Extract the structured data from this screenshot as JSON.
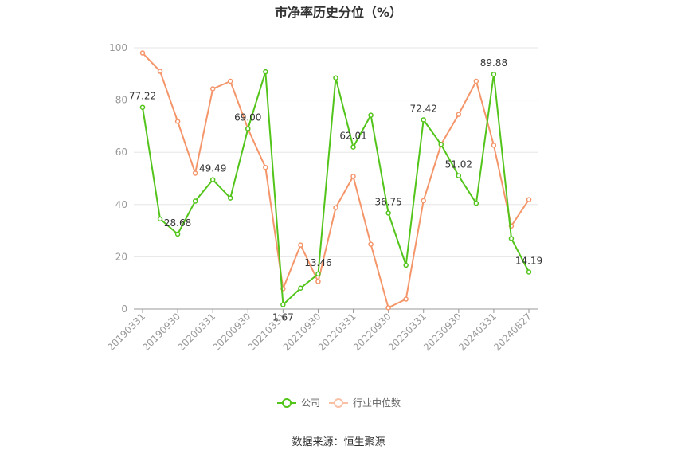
{
  "chart_data": {
    "type": "line",
    "title": "市净率历史分位（%）",
    "source": "数据来源：恒生聚源",
    "ylim": [
      0,
      100
    ],
    "yticks": [
      0,
      20,
      40,
      60,
      80,
      100
    ],
    "grid": true,
    "legend_position": "bottom",
    "x": [
      "20190331",
      "20190630",
      "20190930",
      "20191231",
      "20200331",
      "20200630",
      "20200930",
      "20201231",
      "20210331",
      "20210630",
      "20210930",
      "20211231",
      "20220331",
      "20220630",
      "20220930",
      "20221231",
      "20230331",
      "20230630",
      "20230930",
      "20231231",
      "20240331",
      "20240630",
      "20240827"
    ],
    "xtick_labels": [
      "20190331",
      "20190930",
      "20200331",
      "20200930",
      "20210331",
      "20210930",
      "20220331",
      "20220930",
      "20230331",
      "20230930",
      "20240331",
      "20240827"
    ],
    "xtick_indices": [
      0,
      2,
      4,
      6,
      8,
      10,
      12,
      14,
      16,
      18,
      20,
      22
    ],
    "series": [
      {
        "name": "公司",
        "color": "#52c41a",
        "values": [
          77.22,
          34.5,
          28.68,
          41.3,
          49.49,
          42.5,
          69.0,
          90.8,
          1.67,
          8.0,
          13.46,
          88.5,
          62.01,
          74.2,
          36.75,
          16.8,
          72.42,
          63.0,
          51.02,
          40.5,
          89.88,
          27.0,
          14.19
        ],
        "labels": {
          "0": "77.22",
          "2": "28.68",
          "4": "49.49",
          "6": "69.00",
          "8": "1.67",
          "10": "13.46",
          "12": "62.01",
          "14": "36.75",
          "16": "72.42",
          "18": "51.02",
          "20": "89.88",
          "22": "14.19"
        }
      },
      {
        "name": "行业中位数",
        "color": "#f4956a",
        "values": [
          98.0,
          91.0,
          71.8,
          52.0,
          84.3,
          87.2,
          69.0,
          54.2,
          7.8,
          24.5,
          10.5,
          38.8,
          50.8,
          24.8,
          0.5,
          3.8,
          41.5,
          63.0,
          74.5,
          87.2,
          62.7,
          31.8,
          41.9
        ]
      }
    ]
  }
}
